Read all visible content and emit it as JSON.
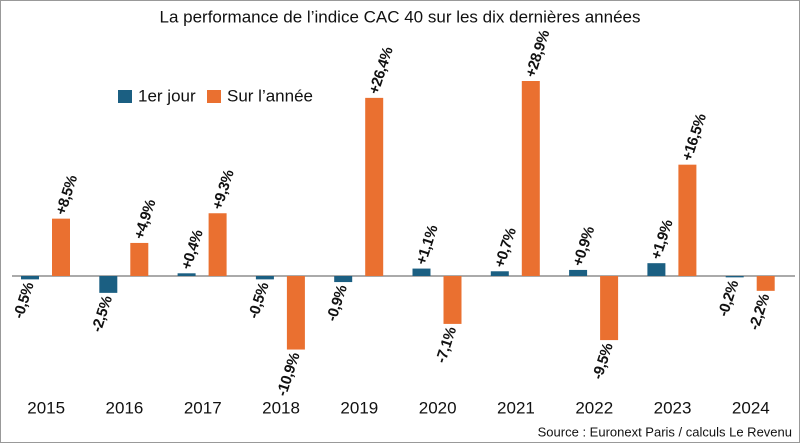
{
  "chart_data": {
    "type": "bar",
    "title": "La performance de l’indice CAC 40 sur les dix dernières années",
    "source": "Source : Euronext Paris / calculs Le Revenu",
    "categories": [
      "2015",
      "2016",
      "2017",
      "2018",
      "2019",
      "2020",
      "2021",
      "2022",
      "2023",
      "2024"
    ],
    "series": [
      {
        "name": "1er jour",
        "color": "#1b5f82",
        "values": [
          -0.5,
          -2.5,
          0.4,
          -0.5,
          -0.9,
          1.1,
          0.7,
          0.9,
          1.9,
          -0.2
        ],
        "value_labels": [
          "-0,5%",
          "-2,5%",
          "+0,4%",
          "-0,5%",
          "-0,9%",
          "+1,1%",
          "+0,7%",
          "+0,9%",
          "+1,9%",
          "-0,2%"
        ]
      },
      {
        "name": "Sur l’année",
        "color": "#ea7030",
        "values": [
          8.5,
          4.9,
          9.3,
          -10.9,
          26.4,
          -7.1,
          28.9,
          -9.5,
          16.5,
          -2.2
        ],
        "value_labels": [
          "+8,5%",
          "+4,9%",
          "+9,3%",
          "-10,9%",
          "+26,4%",
          "-7,1%",
          "+28,9%",
          "-9,5%",
          "+16,5%",
          "-2,2%"
        ]
      }
    ]
  }
}
